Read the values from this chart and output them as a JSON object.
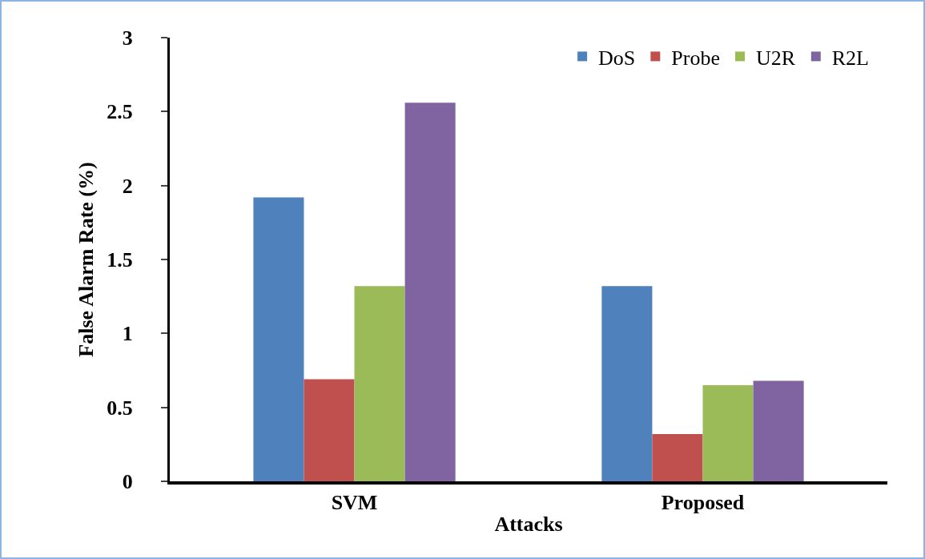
{
  "chart_data": {
    "type": "bar",
    "xlabel": "Attacks",
    "ylabel": "False Alarm Rate (%)",
    "categories": [
      "SVM",
      "Proposed"
    ],
    "series": [
      {
        "name": "DoS",
        "color": "#4f81bd",
        "values": [
          1.92,
          1.32
        ]
      },
      {
        "name": "Probe",
        "color": "#c0504d",
        "values": [
          0.69,
          0.32
        ]
      },
      {
        "name": "U2R",
        "color": "#9bbb59",
        "values": [
          1.32,
          0.65
        ]
      },
      {
        "name": "R2L",
        "color": "#8064a2",
        "values": [
          2.56,
          0.68
        ]
      }
    ],
    "ylim": [
      0,
      3
    ],
    "yticks": [
      0,
      0.5,
      1,
      1.5,
      2,
      2.5,
      3
    ],
    "grid": false,
    "legend": "top right"
  }
}
